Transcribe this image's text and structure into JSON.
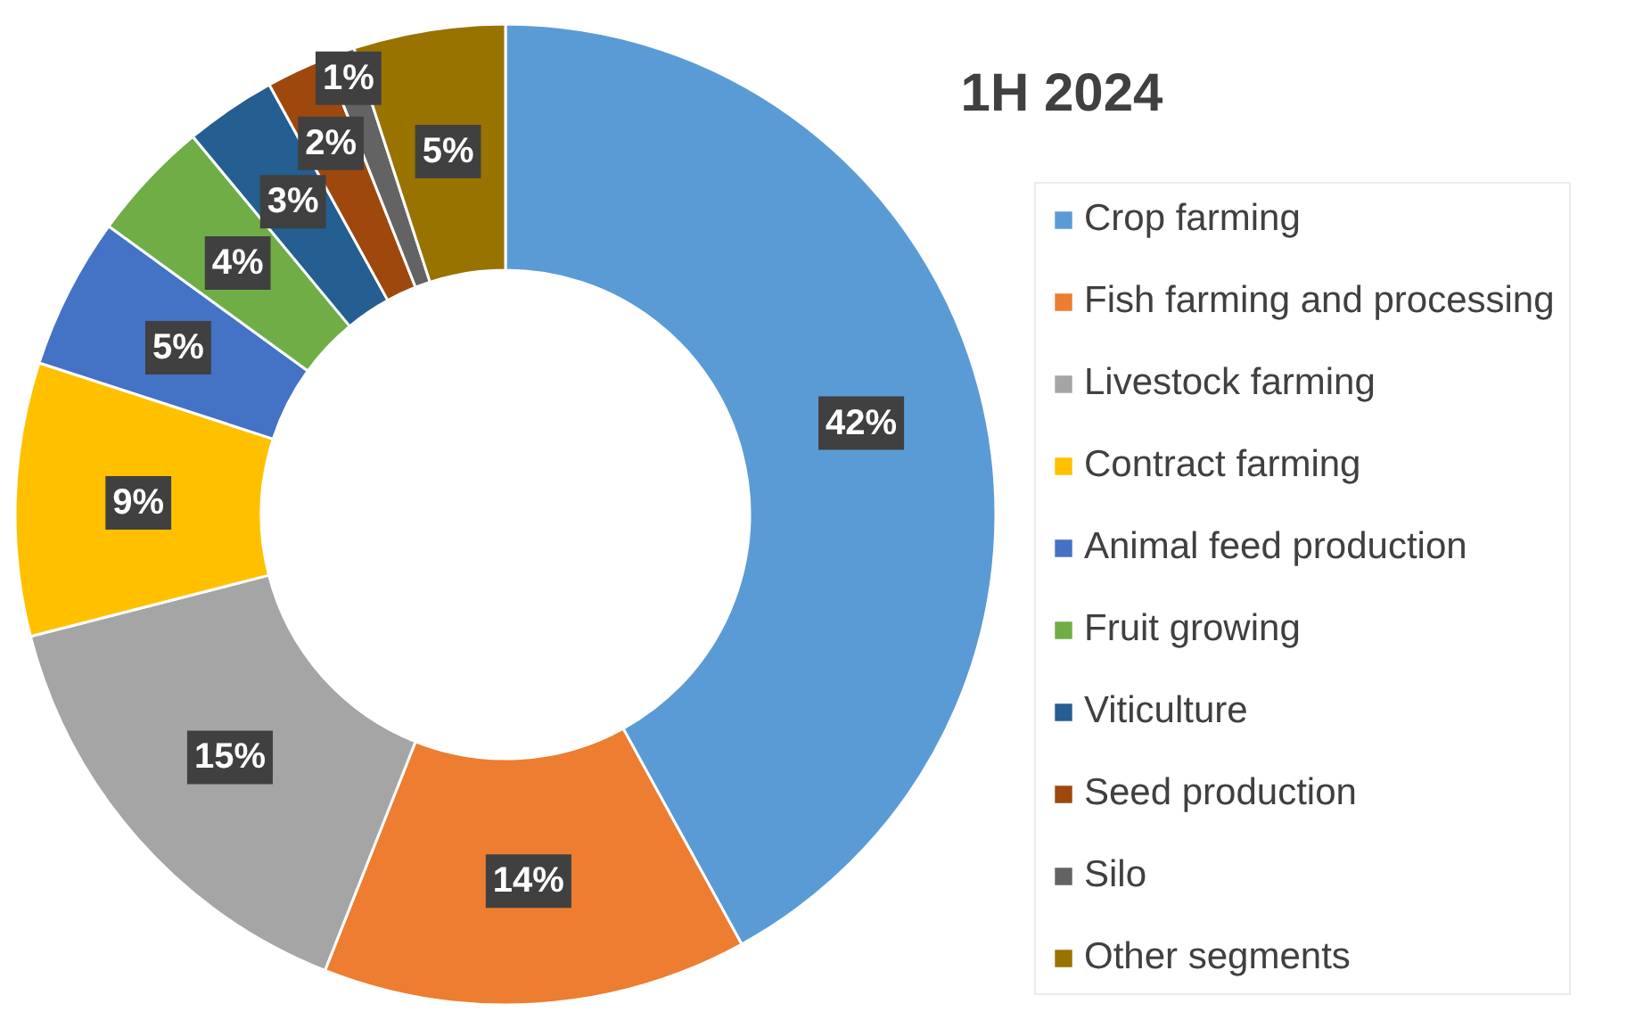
{
  "chart_data": {
    "type": "donut",
    "title": "1H 2024",
    "categories": [
      "Crop farming",
      "Fish farming and processing",
      "Livestock farming",
      "Contract farming",
      "Animal feed production",
      "Fruit growing",
      "Viticulture",
      "Seed production",
      "Silo",
      "Other segments"
    ],
    "values": [
      42,
      14,
      15,
      9,
      5,
      4,
      3,
      2,
      1,
      5
    ],
    "colors": [
      "#5b9bd5",
      "#ed7d31",
      "#a5a5a5",
      "#ffc000",
      "#4472c4",
      "#70ad47",
      "#255e91",
      "#9e480e",
      "#636363",
      "#997300"
    ],
    "value_labels": [
      "42%",
      "14%",
      "15%",
      "9%",
      "5%",
      "4%",
      "3%",
      "2%",
      "1%",
      "5%"
    ],
    "legend": "right"
  }
}
